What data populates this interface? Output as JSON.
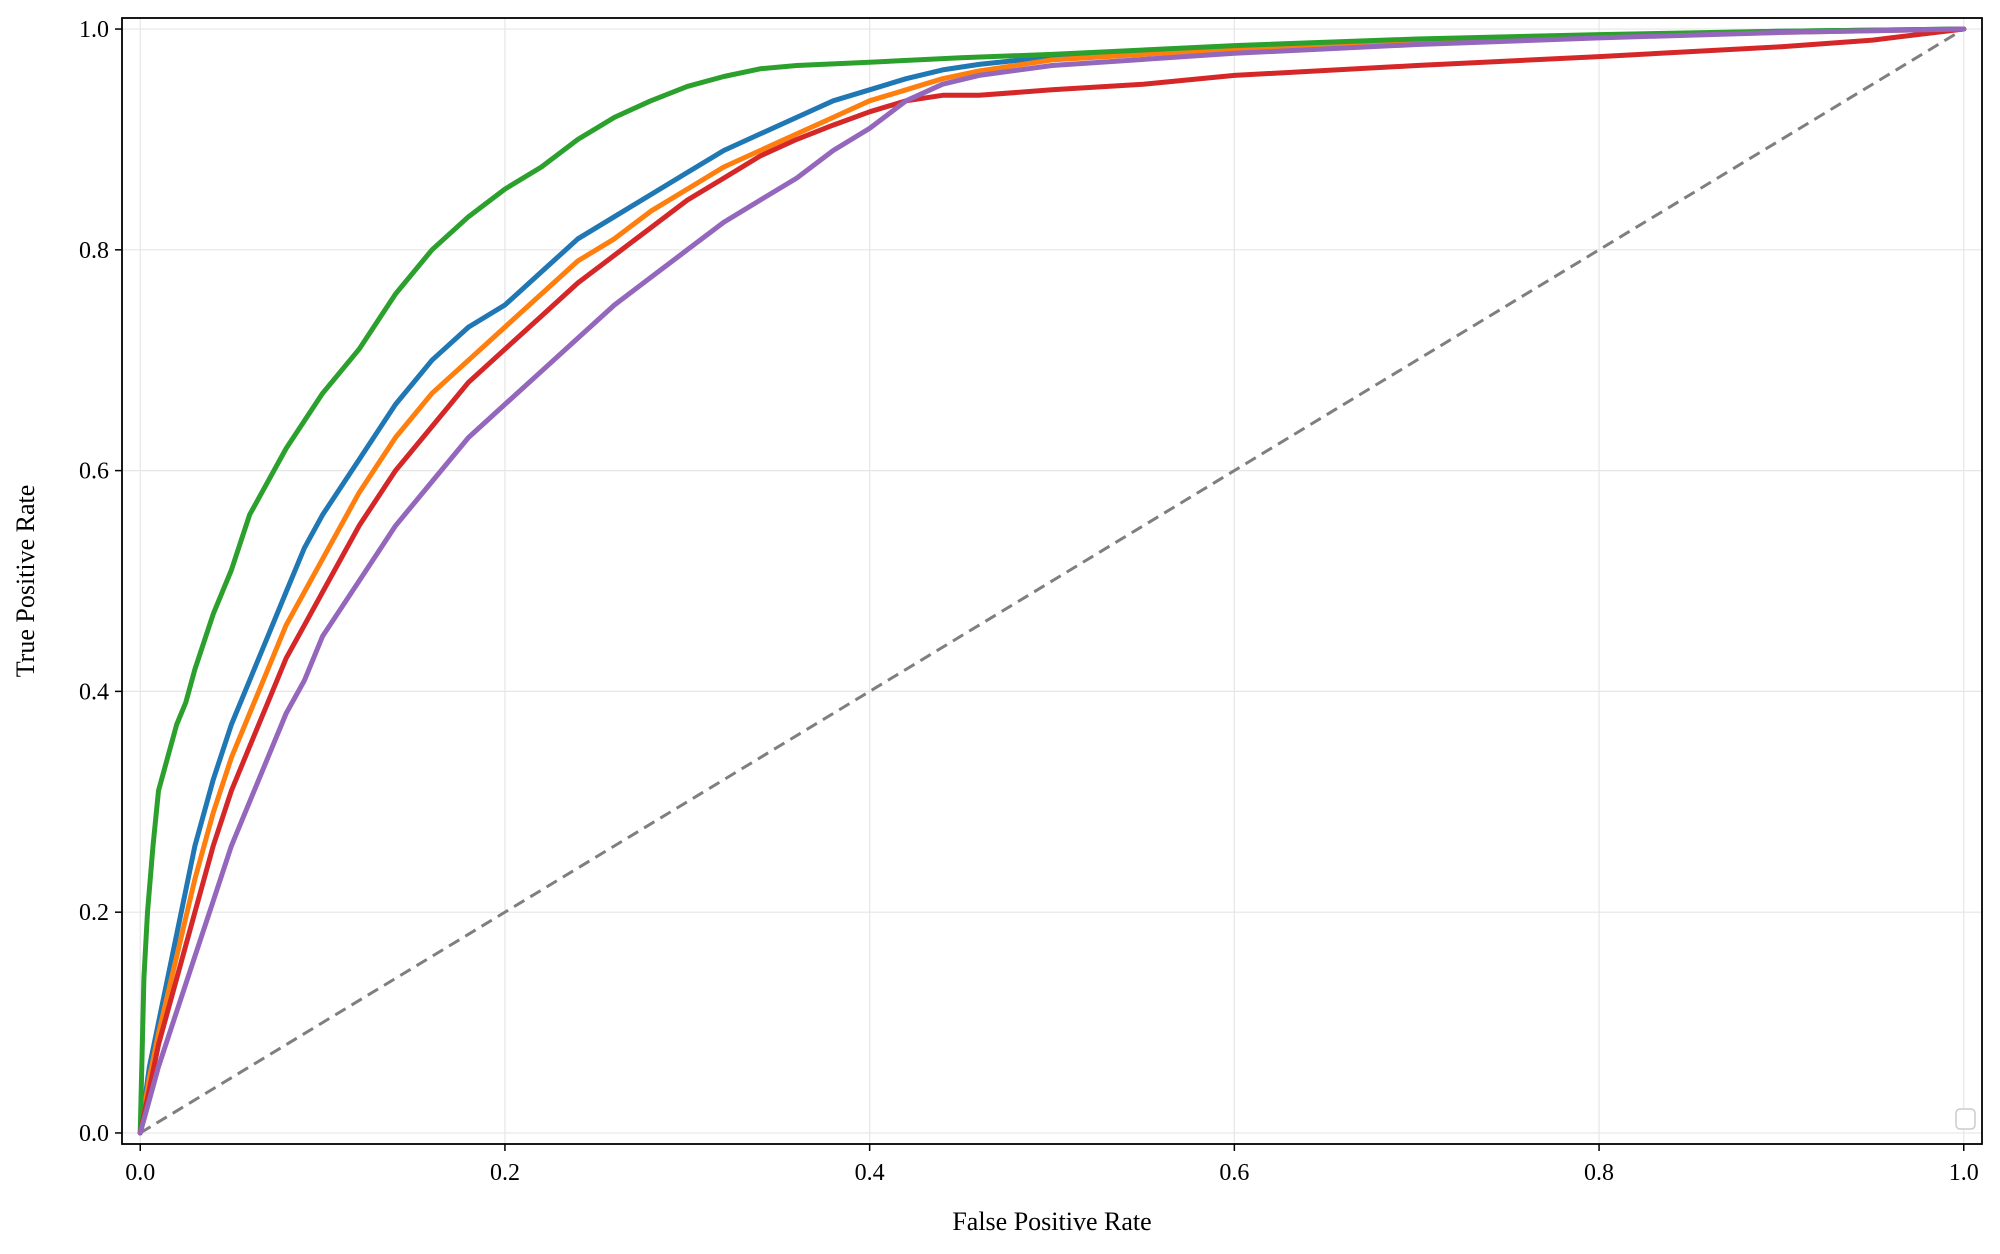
{
  "chart_data": {
    "type": "line",
    "title": "",
    "xlabel": "False Positive Rate",
    "ylabel": "True Positive Rate",
    "xlim": [
      -0.01,
      1.01
    ],
    "ylim": [
      -0.01,
      1.01
    ],
    "xticks": [
      0.0,
      0.2,
      0.4,
      0.6,
      0.8,
      1.0
    ],
    "yticks": [
      0.0,
      0.2,
      0.4,
      0.6,
      0.8,
      1.0
    ],
    "xtick_labels": [
      "0.0",
      "0.2",
      "0.4",
      "0.6",
      "0.8",
      "1.0"
    ],
    "ytick_labels": [
      "0.0",
      "0.2",
      "0.4",
      "0.6",
      "0.8",
      "1.0"
    ],
    "grid": true,
    "legend": {
      "location": "lower right",
      "entries": []
    },
    "chance_line": {
      "x": [
        0,
        1
      ],
      "y": [
        0,
        1
      ],
      "color": "#7f7f7f",
      "style": "dashed"
    },
    "series": [
      {
        "color": "#1f77b4",
        "x": [
          0,
          0.005,
          0.01,
          0.02,
          0.03,
          0.04,
          0.05,
          0.06,
          0.07,
          0.08,
          0.09,
          0.1,
          0.12,
          0.14,
          0.16,
          0.18,
          0.2,
          0.22,
          0.24,
          0.26,
          0.28,
          0.3,
          0.32,
          0.34,
          0.36,
          0.38,
          0.4,
          0.42,
          0.44,
          0.46,
          0.5,
          0.6,
          0.7,
          0.8,
          0.9,
          1.0
        ],
        "y": [
          0,
          0.06,
          0.1,
          0.18,
          0.26,
          0.32,
          0.37,
          0.41,
          0.45,
          0.49,
          0.53,
          0.56,
          0.61,
          0.66,
          0.7,
          0.73,
          0.75,
          0.78,
          0.81,
          0.83,
          0.85,
          0.87,
          0.89,
          0.905,
          0.92,
          0.935,
          0.945,
          0.955,
          0.963,
          0.968,
          0.975,
          0.983,
          0.989,
          0.994,
          0.998,
          1.0
        ]
      },
      {
        "color": "#ff7f0e",
        "x": [
          0,
          0.005,
          0.01,
          0.02,
          0.03,
          0.04,
          0.05,
          0.06,
          0.07,
          0.08,
          0.09,
          0.1,
          0.12,
          0.14,
          0.16,
          0.18,
          0.2,
          0.22,
          0.24,
          0.26,
          0.28,
          0.3,
          0.32,
          0.34,
          0.36,
          0.38,
          0.4,
          0.42,
          0.44,
          0.46,
          0.5,
          0.6,
          0.7,
          0.8,
          0.9,
          1.0
        ],
        "y": [
          0,
          0.05,
          0.09,
          0.16,
          0.23,
          0.29,
          0.34,
          0.38,
          0.42,
          0.46,
          0.49,
          0.52,
          0.58,
          0.63,
          0.67,
          0.7,
          0.73,
          0.76,
          0.79,
          0.81,
          0.835,
          0.855,
          0.875,
          0.89,
          0.905,
          0.92,
          0.935,
          0.945,
          0.955,
          0.962,
          0.972,
          0.982,
          0.988,
          0.993,
          0.997,
          1.0
        ]
      },
      {
        "color": "#2ca02c",
        "x": [
          0,
          0.002,
          0.004,
          0.007,
          0.01,
          0.015,
          0.02,
          0.025,
          0.03,
          0.04,
          0.05,
          0.06,
          0.07,
          0.08,
          0.1,
          0.12,
          0.14,
          0.16,
          0.18,
          0.2,
          0.22,
          0.24,
          0.26,
          0.28,
          0.3,
          0.32,
          0.34,
          0.36,
          0.4,
          0.45,
          0.5,
          0.6,
          0.7,
          0.8,
          0.9,
          1.0
        ],
        "y": [
          0,
          0.14,
          0.2,
          0.26,
          0.31,
          0.34,
          0.37,
          0.39,
          0.42,
          0.47,
          0.51,
          0.56,
          0.59,
          0.62,
          0.67,
          0.71,
          0.76,
          0.8,
          0.83,
          0.855,
          0.875,
          0.9,
          0.92,
          0.935,
          0.948,
          0.957,
          0.964,
          0.967,
          0.97,
          0.974,
          0.977,
          0.985,
          0.991,
          0.995,
          0.998,
          1.0
        ]
      },
      {
        "color": "#d62728",
        "x": [
          0,
          0.005,
          0.01,
          0.02,
          0.03,
          0.04,
          0.05,
          0.06,
          0.07,
          0.08,
          0.09,
          0.1,
          0.12,
          0.14,
          0.16,
          0.18,
          0.2,
          0.22,
          0.24,
          0.26,
          0.28,
          0.3,
          0.32,
          0.34,
          0.36,
          0.38,
          0.4,
          0.42,
          0.44,
          0.46,
          0.5,
          0.55,
          0.6,
          0.7,
          0.8,
          0.9,
          0.95,
          1.0
        ],
        "y": [
          0,
          0.04,
          0.08,
          0.14,
          0.2,
          0.26,
          0.31,
          0.35,
          0.39,
          0.43,
          0.46,
          0.49,
          0.55,
          0.6,
          0.64,
          0.68,
          0.71,
          0.74,
          0.77,
          0.795,
          0.82,
          0.845,
          0.865,
          0.885,
          0.9,
          0.913,
          0.925,
          0.935,
          0.94,
          0.94,
          0.945,
          0.95,
          0.958,
          0.967,
          0.975,
          0.984,
          0.99,
          1.0
        ]
      },
      {
        "color": "#9467bd",
        "x": [
          0,
          0.005,
          0.01,
          0.02,
          0.03,
          0.04,
          0.05,
          0.06,
          0.07,
          0.08,
          0.09,
          0.1,
          0.12,
          0.14,
          0.16,
          0.18,
          0.2,
          0.22,
          0.24,
          0.26,
          0.28,
          0.3,
          0.32,
          0.34,
          0.36,
          0.38,
          0.4,
          0.42,
          0.44,
          0.46,
          0.5,
          0.6,
          0.7,
          0.8,
          0.9,
          1.0
        ],
        "y": [
          0,
          0.03,
          0.06,
          0.11,
          0.16,
          0.21,
          0.26,
          0.3,
          0.34,
          0.38,
          0.41,
          0.45,
          0.5,
          0.55,
          0.59,
          0.63,
          0.66,
          0.69,
          0.72,
          0.75,
          0.775,
          0.8,
          0.825,
          0.845,
          0.865,
          0.89,
          0.91,
          0.935,
          0.95,
          0.958,
          0.967,
          0.978,
          0.986,
          0.992,
          0.997,
          1.0
        ]
      }
    ]
  }
}
